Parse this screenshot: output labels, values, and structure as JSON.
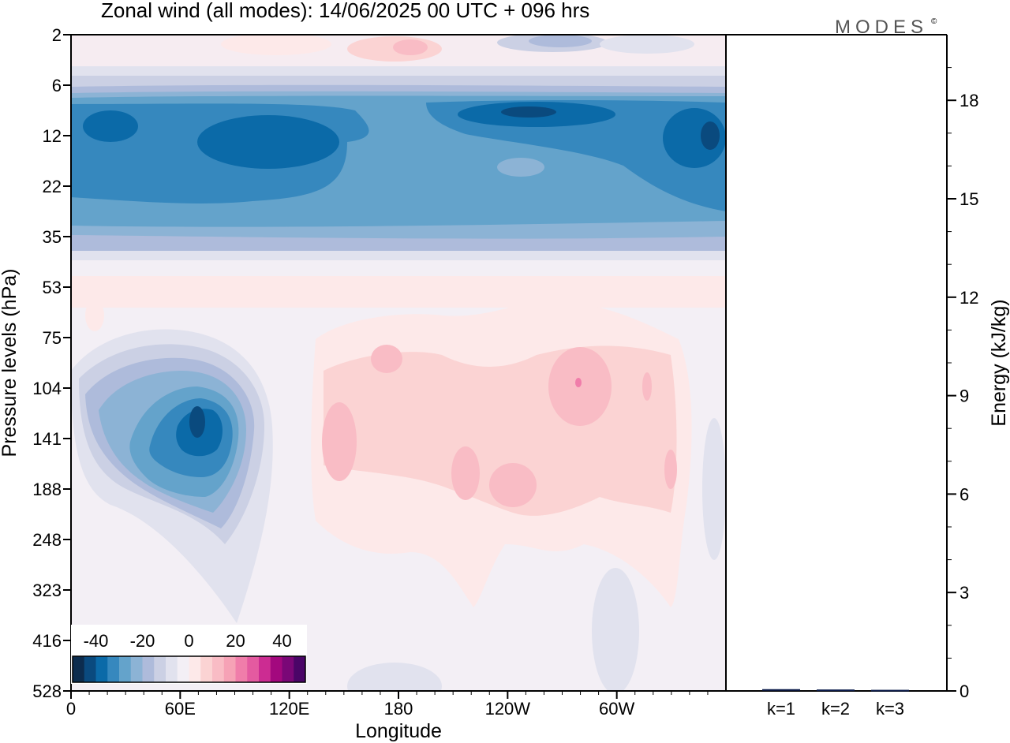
{
  "chart_data": {
    "type": "heatmap",
    "title": "Zonal wind (all modes):  14/06/2025  00 UTC  + 096 hrs",
    "xlabel": "Longitude",
    "ylabel": "Pressure levels (hPa)",
    "x_ticks": [
      "0",
      "60E",
      "120E",
      "180",
      "120W",
      "60W"
    ],
    "x_tick_values": [
      0,
      60,
      120,
      180,
      240,
      300
    ],
    "xlim": [
      0,
      360
    ],
    "y_ticks": [
      "2",
      "6",
      "12",
      "22",
      "35",
      "53",
      "75",
      "104",
      "141",
      "188",
      "248",
      "323",
      "416",
      "528"
    ],
    "colorbar": {
      "tick_labels": [
        "-40",
        "-20",
        "0",
        "20",
        "40"
      ],
      "tick_values": [
        -40,
        -20,
        0,
        20,
        40
      ],
      "range": [
        -50,
        50
      ],
      "colors": [
        "#0c2c4e",
        "#0a4a7e",
        "#0b6aa8",
        "#3688be",
        "#64a3cb",
        "#8cb3d5",
        "#aebbdb",
        "#cbd0e4",
        "#e1e2ee",
        "#f3eff5",
        "#fde9e9",
        "#fbd3d3",
        "#f9bcc5",
        "#f6a2b6",
        "#f07daa",
        "#e45aa0",
        "#cc2c92",
        "#a3087e",
        "#7a0777",
        "#4a0567"
      ]
    },
    "wind_field_description": "Strong easterlies (approx -30 to -40) between 8 and 30 hPa across all longitudes; easterly core (approx -45) near 70E at 120-150 hPa; weak westerlies (approx +5 to +15) between 180 and 70W at 90-300 hPa; near-zero elsewhere.",
    "energy_panel": {
      "type": "bar",
      "ylabel": "Energy (kJ/kg)",
      "categories": [
        "k=1",
        "k=2",
        "k=3"
      ],
      "values": [
        0.03,
        0.02,
        0.01
      ],
      "ylim": [
        0,
        20
      ],
      "y_ticks": [
        "0",
        "3",
        "6",
        "9",
        "12",
        "15",
        "18"
      ],
      "y_tick_values": [
        0,
        3,
        6,
        9,
        12,
        15,
        18
      ]
    }
  },
  "logo_text": "MODES",
  "logo_mark": "©",
  "colors": {
    "background": "#ffffff",
    "axis": "#000000",
    "bar": "#0a1a4a"
  }
}
